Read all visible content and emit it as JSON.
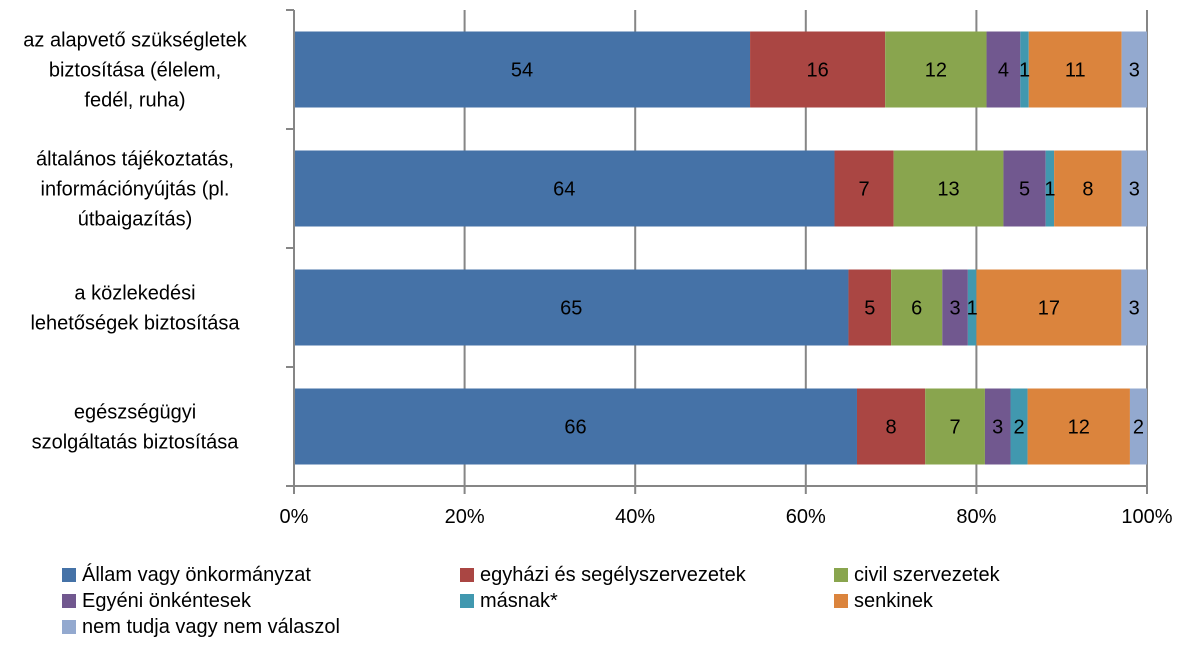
{
  "chart_data": {
    "type": "bar",
    "orientation": "horizontal",
    "stacked": "percent",
    "categories": [
      [
        "az alapvető szükségletek",
        "biztosítása (élelem,",
        "fedél, ruha)"
      ],
      [
        "általános tájékoztatás,",
        "információnyújtás (pl.",
        "útbaigazítás)"
      ],
      [
        "a közlekedési",
        "lehetőségek biztosítása"
      ],
      [
        "egészségügyi",
        "szolgáltatás biztosítása"
      ]
    ],
    "series": [
      {
        "name": "Állam vagy önkormányzat",
        "color": "#4572A7",
        "values": [
          54,
          64,
          65,
          66
        ]
      },
      {
        "name": "egyházi és segélyszervezetek",
        "color": "#AA4643",
        "values": [
          16,
          7,
          5,
          8
        ]
      },
      {
        "name": "civil szervezetek",
        "color": "#89A54E",
        "values": [
          12,
          13,
          6,
          7
        ]
      },
      {
        "name": "Egyéni önkéntesek",
        "color": "#71588F",
        "values": [
          4,
          5,
          3,
          3
        ]
      },
      {
        "name": "másnak*",
        "color": "#4198AF",
        "values": [
          1,
          1,
          1,
          2
        ]
      },
      {
        "name": "senkinek",
        "color": "#DB843D",
        "values": [
          11,
          8,
          17,
          12
        ]
      },
      {
        "name": "nem tudja vagy nem válaszol",
        "color": "#93A9CF",
        "values": [
          3,
          3,
          3,
          2
        ]
      }
    ],
    "x_ticks": [
      "0%",
      "20%",
      "40%",
      "60%",
      "80%",
      "100%"
    ],
    "xlim": [
      0,
      100
    ],
    "grid": "vertical",
    "legend_position": "bottom"
  }
}
